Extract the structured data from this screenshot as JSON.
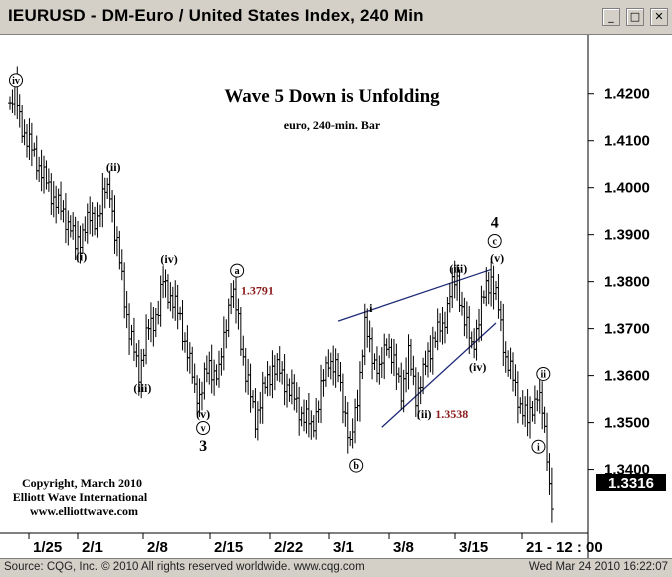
{
  "window": {
    "title": "IEURUSD - DM-Euro / United States Index, 240 Min",
    "min_glyph": "_",
    "max_glyph": "□",
    "close_glyph": "✕",
    "min_icon": "minimize-icon",
    "max_icon": "maximize-icon",
    "close_icon": "close-icon"
  },
  "status": {
    "source": "Source: CQG, Inc. © 2010 All rights reserved worldwide. www.cqg.com",
    "timestamp": "Wed Mar 24 2010 16:22:07"
  },
  "chart_data": {
    "type": "ohlc",
    "title": "Wave 5 Down is Unfolding",
    "subtitle": "euro, 240-min. Bar",
    "ylim": [
      1.3265,
      1.4325
    ],
    "y_ticks": [
      1.42,
      1.41,
      1.4,
      1.39,
      1.38,
      1.37,
      1.36,
      1.35,
      1.34
    ],
    "y_tick_labels": [
      "1.4200",
      "1.4100",
      "1.4000",
      "1.3900",
      "1.3800",
      "1.3700",
      "1.3600",
      "1.3500",
      "1.3400"
    ],
    "last_price": 1.3316,
    "last_price_label": "1.3316",
    "x_labels": [
      "1/25",
      "2/1",
      "2/8",
      "2/15",
      "2/22",
      "3/1",
      "3/8",
      "3/15",
      "21 - 12 : 00"
    ],
    "colors": {
      "bars": "#000000",
      "trendline": "#1f2a78",
      "price_label": "#8b1a1a",
      "text": "#000000"
    },
    "trendlines": [
      {
        "x1": 135,
        "y1": 1.3716,
        "x2": 198,
        "y2": 1.3826
      },
      {
        "x1": 153,
        "y1": 1.349,
        "x2": 200,
        "y2": 1.3712
      }
    ],
    "wave_labels": [
      {
        "text": "iv",
        "x": 0,
        "y": 1.422,
        "circled": true
      },
      {
        "text": "(ii)",
        "x": 40,
        "y": 1.4035
      },
      {
        "text": "(i)",
        "x": 27,
        "y": 1.3845
      },
      {
        "text": "(iv)",
        "x": 63,
        "y": 1.384
      },
      {
        "text": "(iii)",
        "x": 52,
        "y": 1.3565
      },
      {
        "text": "(v)",
        "x": 77,
        "y": 1.351
      },
      {
        "text": "v",
        "x": 77,
        "y": 1.348,
        "circled": true
      },
      {
        "text": "3",
        "x": 77,
        "y": 1.344,
        "bold": true
      },
      {
        "text": "a",
        "x": 91,
        "y": 1.3815,
        "circled": true
      },
      {
        "text": "b",
        "x": 140,
        "y": 1.34,
        "circled": true
      },
      {
        "text": "i",
        "x": 146,
        "y": 1.3735
      },
      {
        "text": "(ii)",
        "x": 168,
        "y": 1.351
      },
      {
        "text": "(iii)",
        "x": 182,
        "y": 1.382
      },
      {
        "text": "(iv)",
        "x": 190,
        "y": 1.361
      },
      {
        "text": "(v)",
        "x": 198,
        "y": 1.3842
      },
      {
        "text": "c",
        "x": 197,
        "y": 1.3878,
        "circled": true
      },
      {
        "text": "4",
        "x": 197,
        "y": 1.3915,
        "bold": true
      },
      {
        "text": "ii",
        "x": 217,
        "y": 1.3595,
        "circled": true
      },
      {
        "text": "i",
        "x": 215,
        "y": 1.344,
        "circled": true
      }
    ],
    "price_notes": [
      {
        "text": "1.3791",
        "x": 95,
        "y": 1.3773
      },
      {
        "text": "1.3538",
        "x": 175,
        "y": 1.351
      }
    ],
    "copyright": [
      "Copyright, March 2010",
      "Elliott Wave International",
      "www.elliottwave.com"
    ],
    "anchors": [
      [
        0,
        1.418
      ],
      [
        2,
        1.42
      ],
      [
        4,
        1.415
      ],
      [
        7,
        1.41
      ],
      [
        11,
        1.406
      ],
      [
        14,
        1.402
      ],
      [
        17,
        1.399
      ],
      [
        21,
        1.395
      ],
      [
        25,
        1.392
      ],
      [
        27,
        1.387
      ],
      [
        30,
        1.391
      ],
      [
        33,
        1.393
      ],
      [
        36,
        1.394
      ],
      [
        39,
        1.399
      ],
      [
        41,
        1.4
      ],
      [
        43,
        1.39
      ],
      [
        46,
        1.381
      ],
      [
        49,
        1.369
      ],
      [
        53,
        1.361
      ],
      [
        57,
        1.37
      ],
      [
        61,
        1.374
      ],
      [
        63,
        1.38
      ],
      [
        66,
        1.377
      ],
      [
        70,
        1.372
      ],
      [
        73,
        1.365
      ],
      [
        76,
        1.357
      ],
      [
        78,
        1.356
      ],
      [
        82,
        1.362
      ],
      [
        86,
        1.36
      ],
      [
        89,
        1.372
      ],
      [
        91,
        1.378
      ],
      [
        94,
        1.372
      ],
      [
        97,
        1.36
      ],
      [
        101,
        1.351
      ],
      [
        104,
        1.356
      ],
      [
        108,
        1.362
      ],
      [
        112,
        1.36
      ],
      [
        116,
        1.356
      ],
      [
        120,
        1.352
      ],
      [
        124,
        1.349
      ],
      [
        127,
        1.354
      ],
      [
        131,
        1.364
      ],
      [
        135,
        1.36
      ],
      [
        138,
        1.352
      ],
      [
        140,
        1.344
      ],
      [
        143,
        1.356
      ],
      [
        146,
        1.37
      ],
      [
        149,
        1.365
      ],
      [
        152,
        1.36
      ],
      [
        155,
        1.368
      ],
      [
        158,
        1.362
      ],
      [
        161,
        1.357
      ],
      [
        164,
        1.364
      ],
      [
        167,
        1.356
      ],
      [
        170,
        1.36
      ],
      [
        174,
        1.368
      ],
      [
        178,
        1.37
      ],
      [
        181,
        1.378
      ],
      [
        184,
        1.38
      ],
      [
        187,
        1.372
      ],
      [
        190,
        1.366
      ],
      [
        193,
        1.372
      ],
      [
        196,
        1.379
      ],
      [
        198,
        1.381
      ],
      [
        201,
        1.374
      ],
      [
        204,
        1.364
      ],
      [
        207,
        1.359
      ],
      [
        210,
        1.354
      ],
      [
        213,
        1.35
      ],
      [
        215,
        1.354
      ],
      [
        217,
        1.356
      ],
      [
        219,
        1.352
      ],
      [
        221,
        1.344
      ],
      [
        222,
        1.337
      ],
      [
        223,
        1.3316
      ]
    ]
  }
}
